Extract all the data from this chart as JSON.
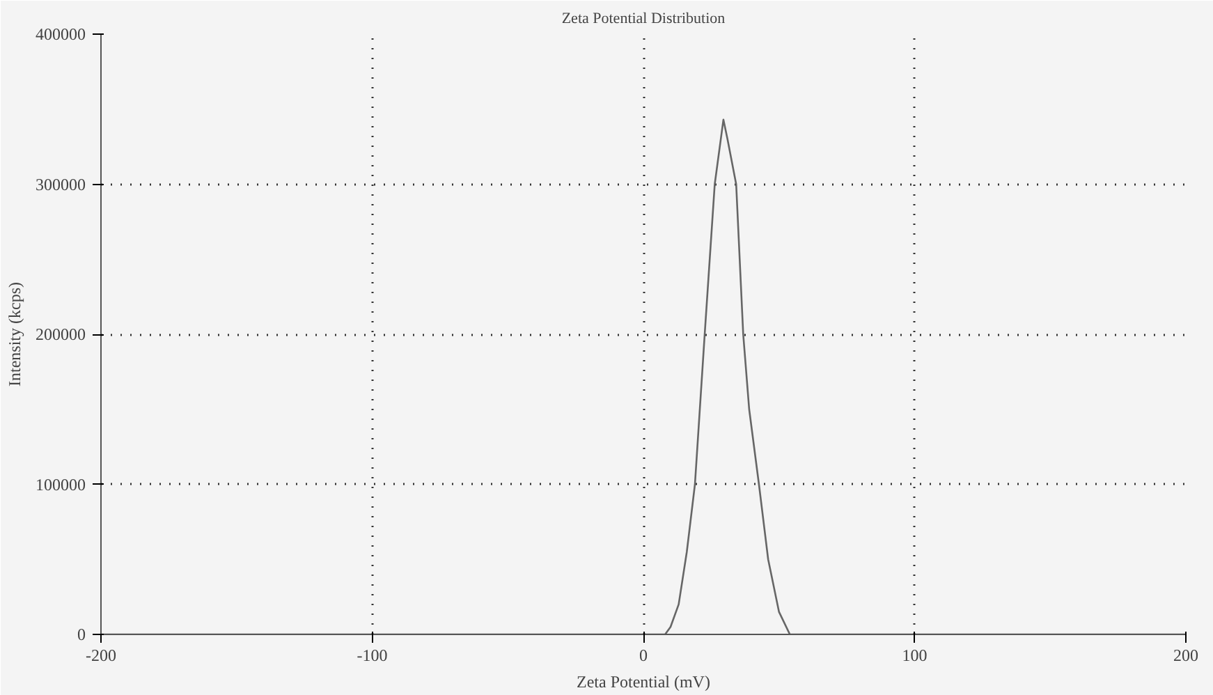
{
  "chart_data": {
    "type": "line",
    "title": "Zeta Potential Distribution",
    "xlabel": "Zeta Potential (mV)",
    "ylabel": "Intensity (kcps)",
    "x": [
      -200,
      0,
      8,
      10,
      13,
      16,
      19,
      22.6,
      26.3,
      29.5,
      31,
      34.2,
      36.8,
      39,
      42.6,
      46,
      50,
      54,
      200
    ],
    "series": [
      {
        "color": "#666666",
        "values": [
          0,
          0,
          0,
          5000,
          20000,
          55000,
          100000,
          200000,
          300000,
          343000,
          330000,
          300000,
          200000,
          150000,
          100000,
          50000,
          15000,
          0,
          0
        ]
      }
    ],
    "xlim": [
      -200,
      200
    ],
    "xticks": [
      -200,
      -100,
      0,
      100,
      200
    ],
    "ylim": [
      0,
      400000
    ],
    "yticks": [
      0,
      100000,
      200000,
      300000,
      400000
    ],
    "grid": true,
    "line_style": "solid"
  }
}
